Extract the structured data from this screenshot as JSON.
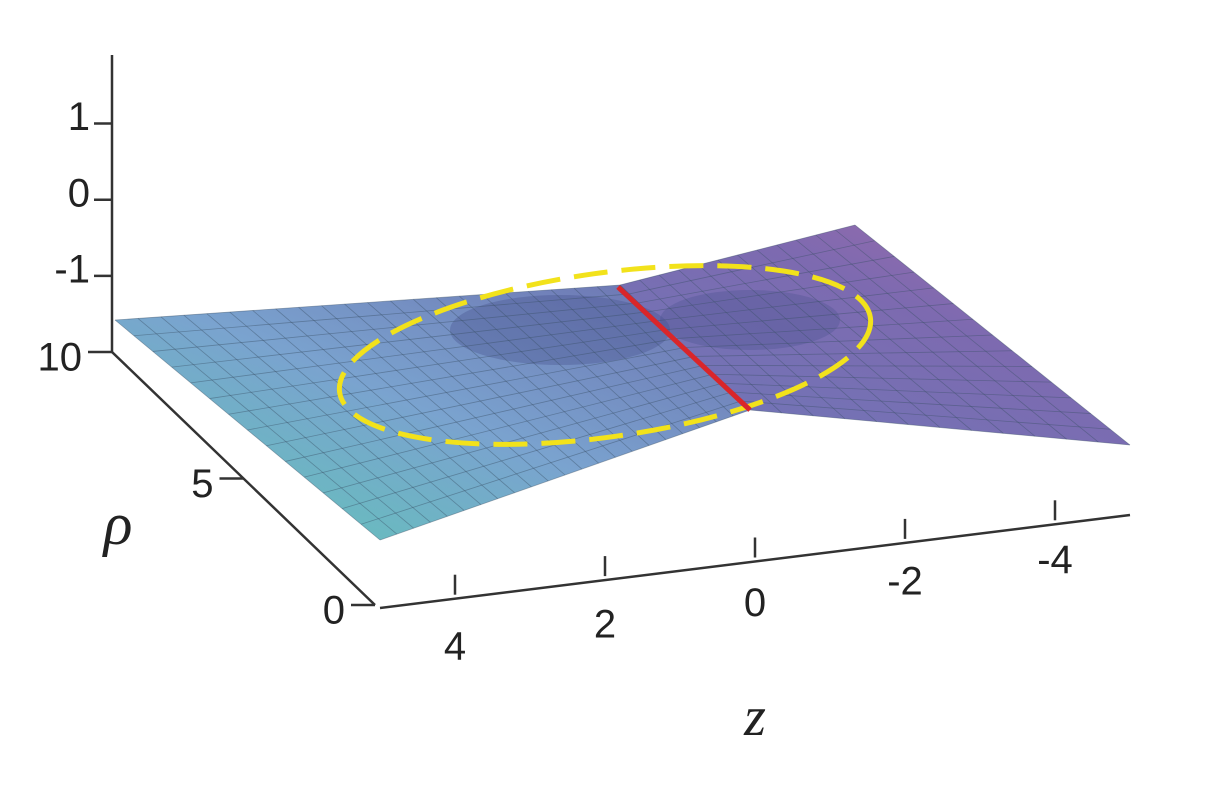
{
  "chart_data": {
    "type": "surface",
    "xlabel": "z",
    "ylabel": "ρ",
    "xlim": [
      5,
      -5
    ],
    "xticks": [
      4,
      2,
      0,
      -2,
      -4
    ],
    "ylim": [
      0,
      10
    ],
    "yticks": [
      0,
      5,
      10
    ],
    "zlim": [
      -2,
      1.9
    ],
    "zticks": [
      -1,
      0,
      1
    ]
  }
}
